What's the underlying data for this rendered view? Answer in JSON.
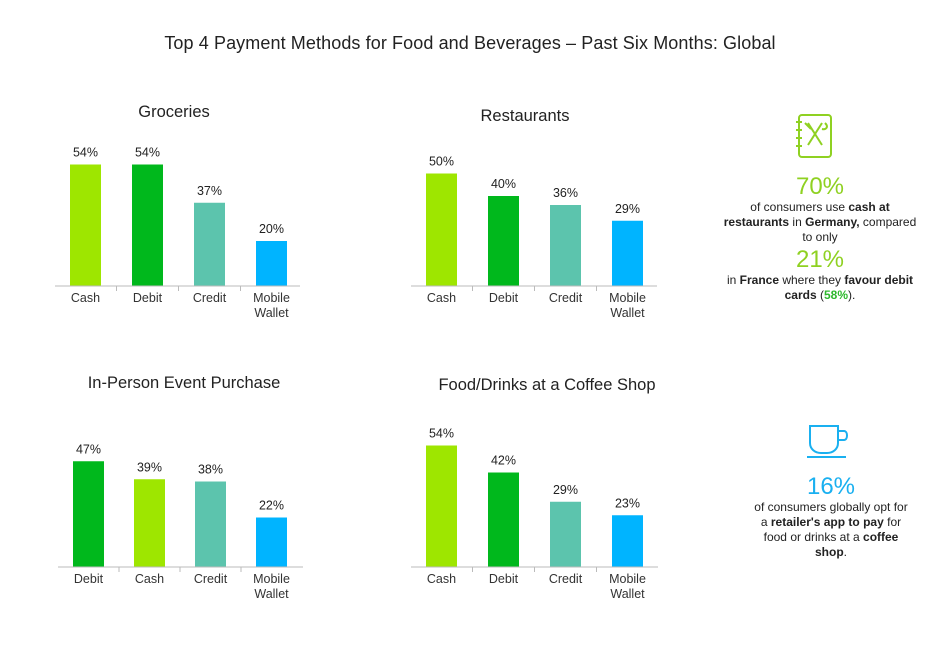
{
  "title": "Top 4 Payment Methods for Food and Beverages – Past Six Months: Global",
  "colors": {
    "cash": "#9ee600",
    "debit": "#00b81c",
    "credit": "#5cc4ad",
    "mobile": "#00b4ff",
    "stat_green": "#8fd122",
    "stat_blue": "#1ab0f0",
    "highlight_green": "#2eb82e"
  },
  "chart_data": [
    {
      "type": "bar",
      "title": "Groceries",
      "categories": [
        "Cash",
        "Debit",
        "Credit",
        "Mobile Wallet"
      ],
      "values": [
        54,
        54,
        37,
        20
      ],
      "value_labels": [
        "54%",
        "54%",
        "37%",
        "20%"
      ],
      "bar_colors": [
        "#9ee600",
        "#00b81c",
        "#5cc4ad",
        "#00b4ff"
      ],
      "ylim": [
        0,
        60
      ]
    },
    {
      "type": "bar",
      "title": "Restaurants",
      "categories": [
        "Cash",
        "Debit",
        "Credit",
        "Mobile Wallet"
      ],
      "values": [
        50,
        40,
        36,
        29
      ],
      "value_labels": [
        "50%",
        "40%",
        "36%",
        "29%"
      ],
      "bar_colors": [
        "#9ee600",
        "#00b81c",
        "#5cc4ad",
        "#00b4ff"
      ],
      "ylim": [
        0,
        60
      ]
    },
    {
      "type": "bar",
      "title": "In-Person Event Purchase",
      "categories": [
        "Debit",
        "Cash",
        "Credit",
        "Mobile Wallet"
      ],
      "values": [
        47,
        39,
        38,
        22
      ],
      "value_labels": [
        "47%",
        "39%",
        "38%",
        "22%"
      ],
      "bar_colors": [
        "#00b81c",
        "#9ee600",
        "#5cc4ad",
        "#00b4ff"
      ],
      "ylim": [
        0,
        60
      ]
    },
    {
      "type": "bar",
      "title": "Food/Drinks at a Coffee Shop",
      "categories": [
        "Cash",
        "Debit",
        "Credit",
        "Mobile Wallet"
      ],
      "values": [
        54,
        42,
        29,
        23
      ],
      "value_labels": [
        "54%",
        "42%",
        "29%",
        "23%"
      ],
      "bar_colors": [
        "#9ee600",
        "#00b81c",
        "#5cc4ad",
        "#00b4ff"
      ],
      "ylim": [
        0,
        60
      ]
    }
  ],
  "stats": {
    "restaurant": {
      "icon": "menu-fork-knife-icon",
      "big1": "70%",
      "text1": [
        {
          "t": "of consumers use ",
          "b": false
        },
        {
          "t": "cash at restaurants",
          "b": true
        },
        {
          "t": " in ",
          "b": false
        },
        {
          "t": "Germany,",
          "b": true
        },
        {
          "t": " compared to only",
          "b": false
        }
      ],
      "big2": "21%",
      "text2": [
        {
          "t": "in ",
          "b": false
        },
        {
          "t": "France",
          "b": true
        },
        {
          "t": " where they ",
          "b": false
        },
        {
          "t": "favour debit cards",
          "b": true
        },
        {
          "t": " (",
          "b": false
        },
        {
          "t": "58%",
          "b": true,
          "hl": true
        },
        {
          "t": ").",
          "b": false
        }
      ]
    },
    "coffee": {
      "icon": "coffee-cup-icon",
      "big": "16%",
      "text": [
        {
          "t": "of consumers globally opt for a ",
          "b": false
        },
        {
          "t": "retailer's app to pay",
          "b": true
        },
        {
          "t": " for food or drinks at a ",
          "b": false
        },
        {
          "t": "coffee shop",
          "b": true
        },
        {
          "t": ".",
          "b": false
        }
      ]
    }
  }
}
